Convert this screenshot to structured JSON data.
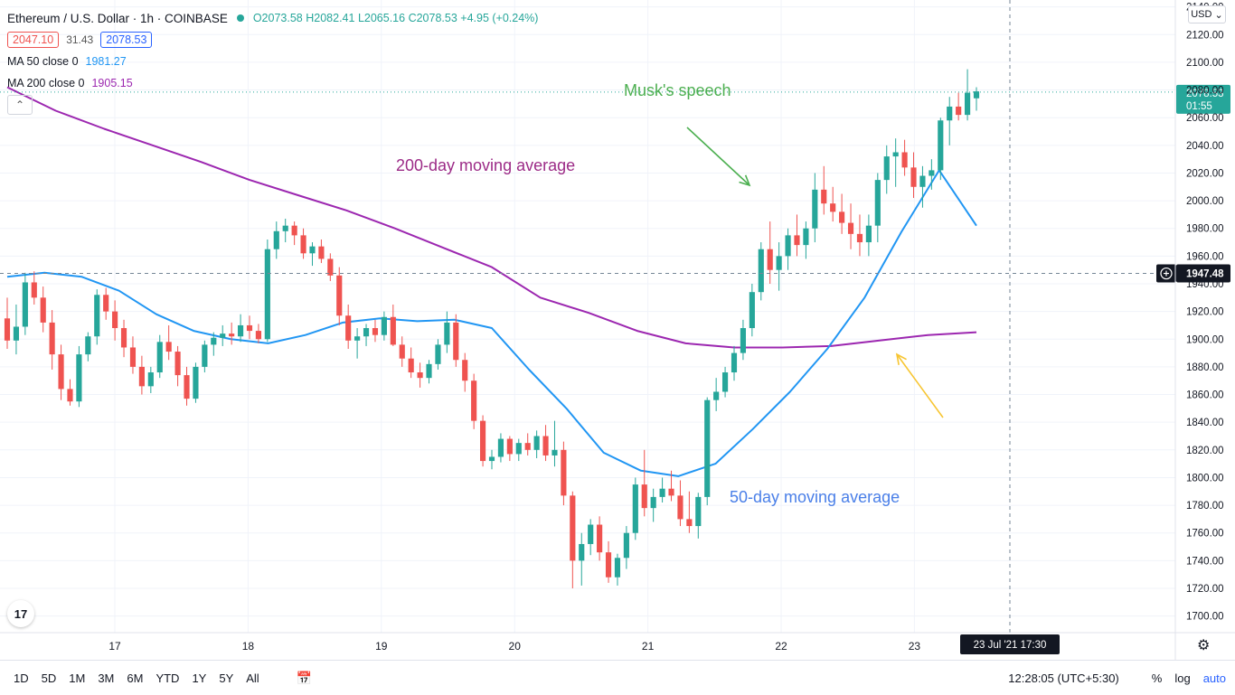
{
  "header": {
    "symbol": "Ethereum / U.S. Dollar · 1h · COINBASE",
    "open": "O2073.58",
    "high": "H2082.41",
    "low": "L2065.16",
    "close": "C2078.53",
    "change": "+4.95 (+0.24%)",
    "bid": "2047.10",
    "spread": "31.43",
    "ask": "2078.53",
    "ma50_label": "MA 50 close 0",
    "ma50_value": "1981.27",
    "ma200_label": "MA 200 close 0",
    "ma200_value": "1905.15",
    "collapse_icon": "chevron-up-icon"
  },
  "currency": "USD",
  "annotations": {
    "musk": "Musk's speech",
    "ma200": "200-day moving average",
    "ma50": "50-day moving average"
  },
  "bottom": {
    "ranges": [
      "1D",
      "5D",
      "1M",
      "3M",
      "6M",
      "YTD",
      "1Y",
      "5Y",
      "All"
    ],
    "time": "12:28:05 (UTC+5:30)",
    "percent": "%",
    "log": "log",
    "auto": "auto"
  },
  "colors": {
    "up": "#26a69a",
    "down": "#ef5350",
    "ma50": "#2196f3",
    "ma200": "#9c27b0",
    "musk_text": "#4caf50",
    "ma200_text": "#9c2b87",
    "ma50_text": "#4a7fe8",
    "arrow_yellow": "#f7c531"
  },
  "chart_data": {
    "type": "candlestick",
    "x_ticks": [
      "17",
      "18",
      "19",
      "20",
      "21",
      "22",
      "23"
    ],
    "y_ticks": [
      1700,
      1720,
      1740,
      1760,
      1780,
      1800,
      1820,
      1840,
      1860,
      1880,
      1900,
      1920,
      1940,
      1960,
      1980,
      2000,
      2020,
      2040,
      2060,
      2080,
      2100,
      2120,
      2140
    ],
    "ylim": [
      1688,
      2145
    ],
    "last_price": "2078.53",
    "countdown": "01:55",
    "crosshair_price": "1947.48",
    "crosshair_time": "23 Jul '21   17:30",
    "crosshair_value": 1947.48,
    "series": [
      {
        "name": "MA 50 close 0",
        "values": [
          1945,
          1948,
          1945,
          1935,
          1918,
          1906,
          1900,
          1897,
          1903,
          1912,
          1915,
          1913,
          1914,
          1908,
          1878,
          1850,
          1818,
          1805,
          1801,
          1810,
          1835,
          1862,
          1893,
          1930,
          1978,
          2022,
          1982
        ]
      },
      {
        "name": "MA 200 close 0",
        "values": [
          2082,
          2065,
          2052,
          2040,
          2028,
          2015,
          2004,
          1993,
          1980,
          1966,
          1952,
          1930,
          1919,
          1906,
          1897,
          1894,
          1894,
          1895,
          1899,
          1903,
          1905
        ]
      }
    ],
    "candles": [
      [
        1915,
        1930,
        1893,
        1899
      ],
      [
        1899,
        1925,
        1889,
        1909
      ],
      [
        1909,
        1948,
        1903,
        1941
      ],
      [
        1941,
        1949,
        1925,
        1930
      ],
      [
        1930,
        1938,
        1905,
        1912
      ],
      [
        1912,
        1921,
        1878,
        1889
      ],
      [
        1889,
        1896,
        1856,
        1864
      ],
      [
        1864,
        1871,
        1852,
        1855
      ],
      [
        1855,
        1895,
        1851,
        1889
      ],
      [
        1889,
        1905,
        1884,
        1902
      ],
      [
        1902,
        1936,
        1896,
        1932
      ],
      [
        1932,
        1937,
        1914,
        1920
      ],
      [
        1920,
        1928,
        1899,
        1908
      ],
      [
        1908,
        1914,
        1887,
        1894
      ],
      [
        1894,
        1902,
        1875,
        1880
      ],
      [
        1880,
        1888,
        1860,
        1866
      ],
      [
        1866,
        1880,
        1861,
        1876
      ],
      [
        1876,
        1903,
        1872,
        1898
      ],
      [
        1898,
        1910,
        1885,
        1891
      ],
      [
        1891,
        1895,
        1866,
        1874
      ],
      [
        1874,
        1880,
        1852,
        1857
      ],
      [
        1857,
        1883,
        1854,
        1880
      ],
      [
        1880,
        1899,
        1876,
        1896
      ],
      [
        1896,
        1905,
        1888,
        1901
      ],
      [
        1901,
        1910,
        1895,
        1904
      ],
      [
        1904,
        1912,
        1896,
        1902
      ],
      [
        1902,
        1918,
        1898,
        1910
      ],
      [
        1910,
        1917,
        1900,
        1906
      ],
      [
        1906,
        1911,
        1897,
        1900
      ],
      [
        1900,
        1972,
        1898,
        1965
      ],
      [
        1965,
        1985,
        1958,
        1978
      ],
      [
        1978,
        1987,
        1970,
        1982
      ],
      [
        1982,
        1985,
        1968,
        1975
      ],
      [
        1975,
        1980,
        1958,
        1962
      ],
      [
        1962,
        1970,
        1953,
        1967
      ],
      [
        1967,
        1972,
        1955,
        1958
      ],
      [
        1958,
        1962,
        1942,
        1946
      ],
      [
        1946,
        1952,
        1910,
        1917
      ],
      [
        1917,
        1925,
        1893,
        1899
      ],
      [
        1899,
        1908,
        1886,
        1902
      ],
      [
        1902,
        1911,
        1895,
        1908
      ],
      [
        1908,
        1914,
        1898,
        1903
      ],
      [
        1903,
        1920,
        1899,
        1916
      ],
      [
        1916,
        1925,
        1895,
        1896
      ],
      [
        1896,
        1902,
        1880,
        1886
      ],
      [
        1886,
        1894,
        1872,
        1876
      ],
      [
        1876,
        1883,
        1865,
        1872
      ],
      [
        1872,
        1885,
        1868,
        1882
      ],
      [
        1882,
        1900,
        1878,
        1896
      ],
      [
        1896,
        1920,
        1890,
        1912
      ],
      [
        1912,
        1918,
        1880,
        1885
      ],
      [
        1885,
        1890,
        1862,
        1870
      ],
      [
        1870,
        1875,
        1835,
        1841
      ],
      [
        1841,
        1845,
        1808,
        1812
      ],
      [
        1812,
        1820,
        1806,
        1815
      ],
      [
        1815,
        1832,
        1811,
        1828
      ],
      [
        1828,
        1830,
        1812,
        1817
      ],
      [
        1817,
        1828,
        1812,
        1825
      ],
      [
        1825,
        1832,
        1816,
        1820
      ],
      [
        1820,
        1834,
        1814,
        1830
      ],
      [
        1830,
        1838,
        1812,
        1816
      ],
      [
        1816,
        1841,
        1808,
        1820
      ],
      [
        1820,
        1826,
        1780,
        1787
      ],
      [
        1787,
        1790,
        1720,
        1740
      ],
      [
        1740,
        1760,
        1722,
        1752
      ],
      [
        1752,
        1770,
        1744,
        1766
      ],
      [
        1766,
        1772,
        1740,
        1746
      ],
      [
        1746,
        1754,
        1724,
        1728
      ],
      [
        1728,
        1745,
        1722,
        1742
      ],
      [
        1742,
        1765,
        1734,
        1760
      ],
      [
        1760,
        1800,
        1755,
        1795
      ],
      [
        1795,
        1820,
        1772,
        1778
      ],
      [
        1778,
        1792,
        1768,
        1786
      ],
      [
        1786,
        1800,
        1782,
        1792
      ],
      [
        1792,
        1805,
        1783,
        1787
      ],
      [
        1787,
        1798,
        1765,
        1770
      ],
      [
        1770,
        1790,
        1760,
        1765
      ],
      [
        1765,
        1789,
        1756,
        1786
      ],
      [
        1786,
        1858,
        1780,
        1856
      ],
      [
        1856,
        1872,
        1848,
        1862
      ],
      [
        1862,
        1880,
        1858,
        1876
      ],
      [
        1876,
        1895,
        1870,
        1890
      ],
      [
        1890,
        1914,
        1885,
        1908
      ],
      [
        1908,
        1940,
        1902,
        1934
      ],
      [
        1934,
        1970,
        1928,
        1965
      ],
      [
        1965,
        1985,
        1940,
        1950
      ],
      [
        1950,
        1970,
        1935,
        1960
      ],
      [
        1960,
        1980,
        1950,
        1975
      ],
      [
        1975,
        1990,
        1960,
        1968
      ],
      [
        1968,
        1985,
        1958,
        1980
      ],
      [
        1980,
        2020,
        1970,
        2008
      ],
      [
        2008,
        2025,
        1990,
        1998
      ],
      [
        1998,
        2010,
        1985,
        1992
      ],
      [
        1992,
        2005,
        1976,
        1984
      ],
      [
        1984,
        1998,
        1965,
        1976
      ],
      [
        1976,
        1990,
        1960,
        1970
      ],
      [
        1970,
        1990,
        1960,
        1982
      ],
      [
        1982,
        2020,
        1970,
        2015
      ],
      [
        2015,
        2040,
        2005,
        2032
      ],
      [
        2032,
        2045,
        2010,
        2035
      ],
      [
        2035,
        2044,
        2018,
        2024
      ],
      [
        2024,
        2035,
        2002,
        2010
      ],
      [
        2010,
        2025,
        1995,
        2018
      ],
      [
        2018,
        2030,
        2008,
        2022
      ],
      [
        2022,
        2060,
        2015,
        2058
      ],
      [
        2058,
        2075,
        2040,
        2068
      ],
      [
        2068,
        2078,
        2058,
        2062
      ],
      [
        2062,
        2095,
        2058,
        2078
      ],
      [
        2074,
        2082,
        2065,
        2079
      ]
    ]
  }
}
